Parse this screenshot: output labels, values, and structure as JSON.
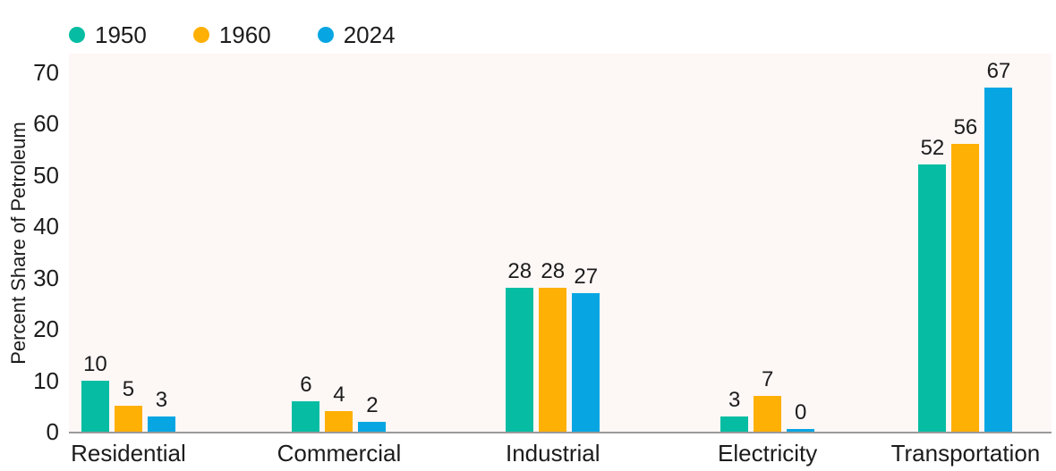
{
  "chart_data": {
    "type": "bar",
    "categories": [
      "Residential",
      "Commercial",
      "Industrial",
      "Electricity",
      "Transportation"
    ],
    "series": [
      {
        "name": "1950",
        "color": "#06BDA3",
        "values": [
          10,
          6,
          28,
          3,
          52
        ]
      },
      {
        "name": "1960",
        "color": "#FFB005",
        "values": [
          5,
          4,
          28,
          7,
          56
        ]
      },
      {
        "name": "2024",
        "color": "#07A6E3",
        "values": [
          3,
          2,
          27,
          0,
          67
        ]
      }
    ],
    "title": "",
    "xlabel": "",
    "ylabel": "Percent Share of Petroleum",
    "ylim": [
      0,
      70
    ],
    "yticks": [
      0,
      10,
      20,
      30,
      40,
      50,
      60,
      70
    ],
    "grid": false,
    "legend_position": "top-left",
    "value_labels_shown": true,
    "plot_background": "#FDF7F6",
    "axis_line_color": "#9A9A9A",
    "text_color": "#1C1C1C"
  }
}
